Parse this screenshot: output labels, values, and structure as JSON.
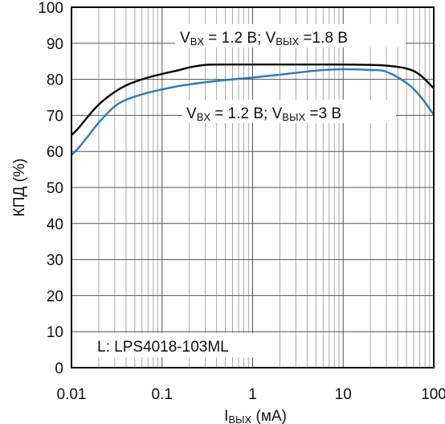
{
  "chart_data": {
    "type": "line",
    "xlabel": {
      "main": "I",
      "sub": "ВЫХ",
      "rest": " (мА)"
    },
    "ylabel": "КПД (%)",
    "xscale": "log",
    "xlim": [
      0.01,
      100
    ],
    "ylim": [
      0,
      100
    ],
    "grid": true,
    "x_ticks": [
      "0.01",
      "0.1",
      "1",
      "10",
      "100"
    ],
    "y_ticks": [
      "0",
      "10",
      "20",
      "30",
      "40",
      "50",
      "60",
      "70",
      "80",
      "90",
      "100"
    ],
    "series": [
      {
        "name": "VBX = 1.2 B; VBЫX = 1.8 B",
        "color": "#000000",
        "x": [
          0.01,
          0.012,
          0.015,
          0.02,
          0.03,
          0.04,
          0.05,
          0.07,
          0.1,
          0.15,
          0.2,
          0.3,
          0.5,
          1,
          2,
          5,
          10,
          20,
          30,
          50,
          70,
          100
        ],
        "y": [
          64.5,
          66.5,
          69.5,
          73,
          76.5,
          78.3,
          79.3,
          80.5,
          81.5,
          82.5,
          83.3,
          84,
          84.1,
          84.1,
          84.1,
          84.1,
          84.1,
          84,
          83.8,
          83,
          81.3,
          77.5
        ]
      },
      {
        "name": "VBX = 1.2 B; VBЫX = 3 B",
        "color": "#2a7ab8",
        "x": [
          0.01,
          0.012,
          0.015,
          0.02,
          0.03,
          0.04,
          0.05,
          0.07,
          0.1,
          0.15,
          0.2,
          0.3,
          0.5,
          1,
          2,
          5,
          10,
          20,
          30,
          50,
          70,
          100
        ],
        "y": [
          59,
          61,
          64,
          68,
          72.5,
          74.3,
          75.2,
          76.3,
          77.2,
          78.1,
          78.6,
          79.2,
          79.8,
          80.5,
          81.3,
          82.4,
          82.8,
          82.6,
          82.1,
          79,
          75.5,
          70.2
        ]
      }
    ],
    "annotations": {
      "series1": {
        "v": "V",
        "s1": "BX",
        "mid": " = 1.2 B; V",
        "s2": "BЫX",
        "end": " =1.8 B"
      },
      "series2": {
        "v": "V",
        "s1": "BX",
        "mid": " = 1.2 B; V",
        "s2": "BЫX",
        "end": " =3 B"
      },
      "inductor": "L: LPS4018-103ML"
    }
  }
}
